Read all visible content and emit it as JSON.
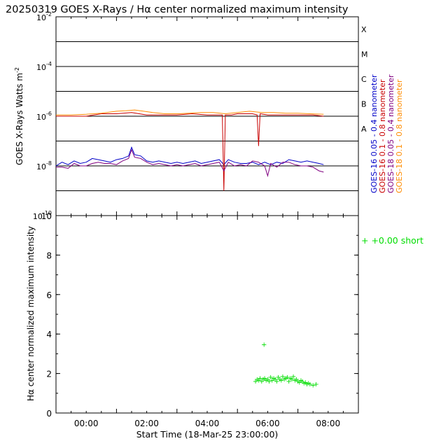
{
  "chart_data": [
    {
      "type": "line",
      "title": "20250319 GOES X-Rays / Hα center normalized maximum intensity",
      "ylabel": "GOES X-Rays Watts m",
      "ylabel_sup": "-2",
      "yscale": "log",
      "ylim_exp": [
        -10,
        -2
      ],
      "ytick_labels": [
        {
          "base": "10",
          "exp": "-2"
        },
        {
          "base": "10",
          "exp": "-4"
        },
        {
          "base": "10",
          "exp": "-6"
        },
        {
          "base": "10",
          "exp": "-8"
        },
        {
          "base": "10",
          "exp": "-10"
        }
      ],
      "flare_classes": [
        "X",
        "M",
        "C",
        "B",
        "A"
      ],
      "xlim_hours": [
        -1,
        9
      ],
      "legend_position": "right",
      "series": [
        {
          "name": "GOES-16 0.05 - 0.4 nanometer",
          "color": "#0000c8",
          "x": [
            -1.0,
            -0.8,
            -0.6,
            -0.4,
            -0.2,
            0.0,
            0.2,
            0.4,
            0.6,
            0.8,
            1.0,
            1.2,
            1.4,
            1.5,
            1.6,
            1.8,
            2.0,
            2.2,
            2.4,
            2.6,
            2.8,
            3.0,
            3.2,
            3.4,
            3.6,
            3.8,
            4.0,
            4.2,
            4.4,
            4.55,
            4.7,
            4.9,
            5.1,
            5.3,
            5.5,
            5.7,
            5.9,
            6.1,
            6.3,
            6.5,
            6.7,
            6.9,
            7.1,
            7.3,
            7.5,
            7.7,
            7.85
          ],
          "log_y": [
            -8.0,
            -7.85,
            -7.95,
            -7.8,
            -7.9,
            -7.85,
            -7.7,
            -7.75,
            -7.8,
            -7.85,
            -7.75,
            -7.7,
            -7.6,
            -7.25,
            -7.55,
            -7.6,
            -7.8,
            -7.85,
            -7.8,
            -7.85,
            -7.9,
            -7.85,
            -7.9,
            -7.85,
            -7.8,
            -7.9,
            -7.85,
            -7.8,
            -7.75,
            -7.95,
            -7.75,
            -7.85,
            -7.9,
            -7.9,
            -7.85,
            -7.95,
            -7.85,
            -7.95,
            -7.85,
            -7.9,
            -7.75,
            -7.8,
            -7.85,
            -7.8,
            -7.85,
            -7.9,
            -7.95
          ]
        },
        {
          "name": "GOES-16 0.1 - 0.8 nanometer",
          "color": "#c80000",
          "x": [
            -1.0,
            -0.5,
            0.0,
            0.5,
            1.0,
            1.5,
            2.0,
            2.5,
            3.0,
            3.5,
            4.0,
            4.5,
            4.55,
            4.6,
            4.8,
            5.0,
            5.5,
            5.65,
            5.7,
            5.75,
            6.0,
            6.5,
            7.0,
            7.5,
            7.85
          ],
          "log_y": [
            -6.0,
            -6.0,
            -6.0,
            -5.9,
            -5.9,
            -5.85,
            -5.95,
            -5.95,
            -5.95,
            -5.9,
            -5.95,
            -5.95,
            -9.0,
            -5.95,
            -5.95,
            -5.9,
            -5.9,
            -5.95,
            -7.2,
            -5.9,
            -5.95,
            -5.95,
            -5.95,
            -5.95,
            -6.0
          ]
        },
        {
          "name": "GOES-18 0.05 - 0.4 nanometer",
          "color": "#800080",
          "x": [
            -1.0,
            -0.8,
            -0.6,
            -0.4,
            -0.2,
            0.0,
            0.2,
            0.4,
            0.6,
            0.8,
            1.0,
            1.2,
            1.4,
            1.5,
            1.6,
            1.8,
            2.0,
            2.2,
            2.4,
            2.6,
            2.8,
            3.0,
            3.2,
            3.4,
            3.6,
            3.8,
            4.0,
            4.2,
            4.4,
            4.55,
            4.7,
            4.9,
            5.1,
            5.3,
            5.5,
            5.7,
            5.9,
            6.0,
            6.1,
            6.3,
            6.5,
            6.7,
            6.9,
            7.1,
            7.3,
            7.5,
            7.7,
            7.85
          ],
          "log_y": [
            -8.05,
            -8.05,
            -8.1,
            -7.9,
            -8.0,
            -8.0,
            -7.9,
            -7.85,
            -7.9,
            -7.9,
            -7.95,
            -7.8,
            -7.7,
            -7.35,
            -7.65,
            -7.7,
            -7.85,
            -7.95,
            -7.9,
            -7.95,
            -8.0,
            -7.95,
            -8.0,
            -7.95,
            -7.9,
            -8.0,
            -7.95,
            -7.9,
            -7.85,
            -8.2,
            -7.85,
            -8.0,
            -7.95,
            -8.0,
            -7.8,
            -7.85,
            -8.0,
            -8.4,
            -7.9,
            -8.05,
            -7.85,
            -7.85,
            -7.95,
            -8.0,
            -8.0,
            -8.05,
            -8.2,
            -8.25
          ]
        },
        {
          "name": "GOES-18 0.1 - 0.8 nanometer",
          "color": "#ff8c00",
          "x": [
            -1.0,
            -0.5,
            0.0,
            0.5,
            1.0,
            1.3,
            1.6,
            1.9,
            2.2,
            2.6,
            3.0,
            3.4,
            3.8,
            4.2,
            4.6,
            5.0,
            5.4,
            5.8,
            6.2,
            6.6,
            7.0,
            7.4,
            7.85
          ],
          "log_y": [
            -5.95,
            -5.95,
            -5.92,
            -5.88,
            -5.8,
            -5.78,
            -5.75,
            -5.8,
            -5.85,
            -5.9,
            -5.9,
            -5.88,
            -5.85,
            -5.85,
            -5.9,
            -5.85,
            -5.8,
            -5.85,
            -5.85,
            -5.88,
            -5.88,
            -5.9,
            -5.92
          ]
        }
      ]
    },
    {
      "type": "scatter",
      "xlabel": "Start Time (18-Mar-25 23:00:00)",
      "ylabel": "Hα center normalized maximum intensity",
      "ylim": [
        0,
        10
      ],
      "ytick_labels": [
        "0",
        "2",
        "4",
        "6",
        "8",
        "10"
      ],
      "xlim_hours": [
        -1,
        9
      ],
      "xtick_labels": [
        "00:00",
        "02:00",
        "04:00",
        "06:00",
        "08:00"
      ],
      "legend": "+  +0.00 short",
      "series": [
        {
          "name": "short",
          "color": "#00dd00",
          "x": [
            5.6,
            5.65,
            5.7,
            5.75,
            5.8,
            5.85,
            5.88,
            5.9,
            5.95,
            6.0,
            6.05,
            6.1,
            6.15,
            6.2,
            6.25,
            6.3,
            6.35,
            6.4,
            6.45,
            6.5,
            6.55,
            6.6,
            6.65,
            6.7,
            6.75,
            6.8,
            6.85,
            6.9,
            6.95,
            7.0,
            7.05,
            7.1,
            7.15,
            7.2,
            7.25,
            7.3,
            7.35,
            7.4,
            7.5,
            7.6
          ],
          "y": [
            1.6,
            1.7,
            1.65,
            1.75,
            1.6,
            1.7,
            3.45,
            1.75,
            1.65,
            1.7,
            1.6,
            1.8,
            1.65,
            1.75,
            1.7,
            1.6,
            1.8,
            1.7,
            1.65,
            1.85,
            1.7,
            1.75,
            1.8,
            1.6,
            1.75,
            1.7,
            1.85,
            1.65,
            1.7,
            1.6,
            1.55,
            1.65,
            1.6,
            1.5,
            1.55,
            1.45,
            1.5,
            1.45,
            1.4,
            1.45
          ]
        }
      ]
    }
  ]
}
